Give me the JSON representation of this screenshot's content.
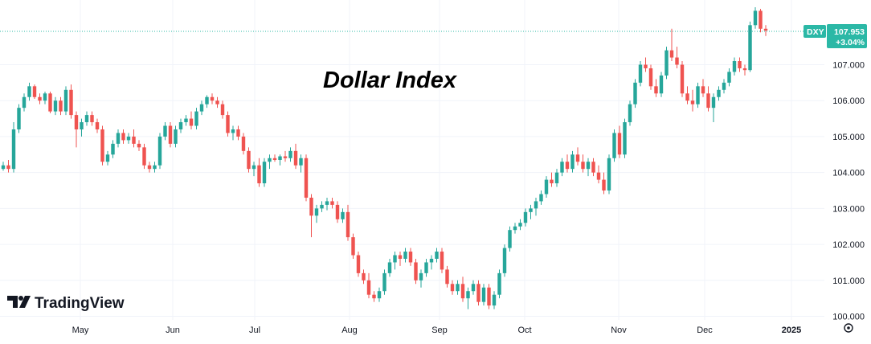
{
  "chart_data": {
    "type": "candlestick",
    "title": "Dollar Index",
    "symbol": "DXY",
    "last_price": "107.953",
    "change_pct": "+3.04%",
    "y_tick_labels": [
      "100.000",
      "101.000",
      "102.000",
      "103.000",
      "104.000",
      "105.000",
      "106.000",
      "107.000"
    ],
    "y_ticks": [
      100,
      101,
      102,
      103,
      104,
      105,
      106,
      107
    ],
    "ylim": [
      99.9,
      108.8
    ],
    "x_tick_labels": [
      "May",
      "Jun",
      "Jul",
      "Aug",
      "Sep",
      "Oct",
      "Nov",
      "Dec",
      "2025"
    ],
    "x_tick_bold": "2025",
    "grid": true,
    "up_color": "#26a69a",
    "down_color": "#ef5350",
    "accent_color": "#2bb8a6",
    "candles": [
      [
        104.1,
        104.3,
        104.05,
        104.2
      ],
      [
        104.2,
        104.35,
        104.0,
        104.1
      ],
      [
        104.1,
        105.4,
        104.0,
        105.2
      ],
      [
        105.2,
        105.9,
        105.1,
        105.8
      ],
      [
        105.8,
        106.2,
        105.7,
        106.1
      ],
      [
        106.1,
        106.5,
        106.0,
        106.4
      ],
      [
        106.4,
        106.45,
        106.05,
        106.1
      ],
      [
        106.1,
        106.2,
        105.9,
        106.0
      ],
      [
        106.0,
        106.25,
        105.9,
        106.2
      ],
      [
        106.2,
        106.25,
        105.65,
        105.7
      ],
      [
        105.7,
        106.1,
        105.6,
        106.0
      ],
      [
        106.0,
        106.1,
        105.6,
        105.7
      ],
      [
        105.7,
        106.4,
        105.6,
        106.3
      ],
      [
        106.3,
        106.45,
        105.5,
        105.6
      ],
      [
        105.6,
        105.7,
        104.7,
        105.2
      ],
      [
        105.2,
        105.5,
        105.0,
        105.4
      ],
      [
        105.4,
        105.7,
        105.3,
        105.6
      ],
      [
        105.6,
        105.7,
        105.3,
        105.4
      ],
      [
        105.4,
        105.5,
        105.1,
        105.2
      ],
      [
        105.2,
        105.3,
        104.2,
        104.3
      ],
      [
        104.3,
        104.6,
        104.2,
        104.5
      ],
      [
        104.5,
        104.9,
        104.4,
        104.8
      ],
      [
        104.8,
        105.2,
        104.7,
        105.1
      ],
      [
        105.1,
        105.2,
        104.8,
        104.9
      ],
      [
        104.9,
        105.1,
        104.8,
        105.0
      ],
      [
        105.0,
        105.2,
        104.7,
        104.8
      ],
      [
        104.8,
        104.9,
        104.6,
        104.7
      ],
      [
        104.7,
        104.8,
        104.1,
        104.2
      ],
      [
        104.2,
        104.3,
        104.0,
        104.1
      ],
      [
        104.1,
        104.3,
        104.0,
        104.2
      ],
      [
        104.2,
        105.1,
        104.1,
        105.0
      ],
      [
        105.0,
        105.4,
        104.9,
        105.3
      ],
      [
        105.3,
        105.4,
        104.7,
        104.8
      ],
      [
        104.8,
        105.3,
        104.7,
        105.2
      ],
      [
        105.2,
        105.5,
        105.1,
        105.4
      ],
      [
        105.4,
        105.6,
        105.3,
        105.5
      ],
      [
        105.5,
        105.7,
        105.2,
        105.3
      ],
      [
        105.3,
        105.8,
        105.2,
        105.7
      ],
      [
        105.7,
        106.0,
        105.6,
        105.9
      ],
      [
        105.9,
        106.15,
        105.8,
        106.1
      ],
      [
        106.1,
        106.2,
        105.9,
        106.0
      ],
      [
        106.0,
        106.1,
        105.8,
        105.9
      ],
      [
        105.9,
        106.0,
        105.5,
        105.6
      ],
      [
        105.6,
        105.7,
        105.0,
        105.1
      ],
      [
        105.1,
        105.3,
        104.9,
        105.2
      ],
      [
        105.2,
        105.3,
        104.9,
        105.0
      ],
      [
        105.0,
        105.1,
        104.5,
        104.6
      ],
      [
        104.6,
        104.7,
        104.0,
        104.1
      ],
      [
        104.1,
        104.3,
        103.9,
        104.2
      ],
      [
        104.2,
        104.4,
        103.6,
        103.7
      ],
      [
        103.7,
        104.4,
        103.6,
        104.3
      ],
      [
        104.3,
        104.5,
        104.1,
        104.4
      ],
      [
        104.4,
        104.5,
        104.3,
        104.35
      ],
      [
        104.35,
        104.5,
        104.2,
        104.45
      ],
      [
        104.45,
        104.6,
        104.3,
        104.4
      ],
      [
        104.4,
        104.7,
        104.3,
        104.6
      ],
      [
        104.6,
        104.8,
        104.1,
        104.2
      ],
      [
        104.2,
        104.5,
        104.0,
        104.4
      ],
      [
        104.4,
        104.5,
        103.2,
        103.3
      ],
      [
        103.3,
        103.4,
        102.2,
        102.8
      ],
      [
        102.8,
        103.1,
        102.6,
        103.0
      ],
      [
        103.0,
        103.2,
        102.9,
        103.1
      ],
      [
        103.1,
        103.3,
        102.95,
        103.2
      ],
      [
        103.2,
        103.3,
        103.0,
        103.1
      ],
      [
        103.1,
        103.2,
        102.6,
        102.7
      ],
      [
        102.7,
        103.0,
        102.6,
        102.9
      ],
      [
        102.9,
        103.1,
        102.1,
        102.2
      ],
      [
        102.2,
        102.3,
        101.6,
        101.7
      ],
      [
        101.7,
        101.8,
        101.1,
        101.2
      ],
      [
        101.2,
        101.3,
        100.9,
        101.0
      ],
      [
        101.0,
        101.2,
        100.5,
        100.6
      ],
      [
        100.6,
        100.7,
        100.4,
        100.5
      ],
      [
        100.5,
        100.8,
        100.4,
        100.7
      ],
      [
        100.7,
        101.3,
        100.6,
        101.2
      ],
      [
        101.2,
        101.6,
        101.1,
        101.5
      ],
      [
        101.5,
        101.8,
        101.3,
        101.7
      ],
      [
        101.7,
        101.8,
        101.4,
        101.6
      ],
      [
        101.6,
        101.9,
        101.5,
        101.8
      ],
      [
        101.8,
        101.9,
        101.4,
        101.5
      ],
      [
        101.5,
        101.6,
        100.9,
        101.0
      ],
      [
        101.0,
        101.3,
        100.8,
        101.2
      ],
      [
        101.2,
        101.6,
        101.1,
        101.5
      ],
      [
        101.5,
        101.7,
        101.3,
        101.6
      ],
      [
        101.6,
        101.9,
        101.5,
        101.8
      ],
      [
        101.8,
        101.9,
        101.2,
        101.3
      ],
      [
        101.3,
        101.4,
        100.8,
        100.9
      ],
      [
        100.9,
        101.0,
        100.6,
        100.7
      ],
      [
        100.7,
        101.0,
        100.6,
        100.9
      ],
      [
        100.9,
        101.1,
        100.4,
        100.5
      ],
      [
        100.5,
        100.8,
        100.2,
        100.7
      ],
      [
        100.7,
        101.0,
        100.6,
        100.9
      ],
      [
        100.9,
        101.0,
        100.3,
        100.4
      ],
      [
        100.4,
        100.9,
        100.3,
        100.8
      ],
      [
        100.8,
        100.9,
        100.2,
        100.3
      ],
      [
        100.3,
        100.7,
        100.2,
        100.6
      ],
      [
        100.6,
        101.3,
        100.5,
        101.2
      ],
      [
        101.2,
        102.0,
        101.1,
        101.9
      ],
      [
        101.9,
        102.5,
        101.8,
        102.4
      ],
      [
        102.4,
        102.6,
        102.3,
        102.5
      ],
      [
        102.5,
        102.7,
        102.4,
        102.6
      ],
      [
        102.6,
        103.0,
        102.5,
        102.9
      ],
      [
        102.9,
        103.1,
        102.7,
        103.0
      ],
      [
        103.0,
        103.3,
        102.8,
        103.2
      ],
      [
        103.2,
        103.5,
        103.1,
        103.4
      ],
      [
        103.4,
        103.9,
        103.3,
        103.8
      ],
      [
        103.8,
        104.0,
        103.6,
        103.7
      ],
      [
        103.7,
        104.1,
        103.6,
        104.0
      ],
      [
        104.0,
        104.4,
        103.9,
        104.3
      ],
      [
        104.3,
        104.5,
        104.0,
        104.1
      ],
      [
        104.1,
        104.6,
        104.0,
        104.5
      ],
      [
        104.5,
        104.7,
        104.2,
        104.3
      ],
      [
        104.3,
        104.5,
        104.0,
        104.1
      ],
      [
        104.1,
        104.4,
        103.9,
        104.3
      ],
      [
        104.3,
        104.4,
        103.9,
        104.0
      ],
      [
        104.0,
        104.2,
        103.7,
        103.8
      ],
      [
        103.8,
        104.0,
        103.4,
        103.5
      ],
      [
        103.5,
        104.5,
        103.4,
        104.4
      ],
      [
        104.4,
        105.2,
        104.3,
        105.1
      ],
      [
        105.1,
        105.3,
        104.4,
        104.5
      ],
      [
        104.5,
        105.5,
        104.4,
        105.4
      ],
      [
        105.4,
        106.0,
        105.3,
        105.9
      ],
      [
        105.9,
        106.6,
        105.8,
        106.5
      ],
      [
        106.5,
        107.1,
        106.4,
        107.0
      ],
      [
        107.0,
        107.2,
        106.8,
        106.9
      ],
      [
        106.9,
        107.0,
        106.3,
        106.4
      ],
      [
        106.4,
        106.6,
        106.1,
        106.2
      ],
      [
        106.2,
        106.8,
        106.1,
        106.7
      ],
      [
        106.7,
        107.5,
        106.6,
        107.4
      ],
      [
        107.4,
        108.0,
        107.1,
        107.2
      ],
      [
        107.2,
        107.5,
        106.9,
        107.0
      ],
      [
        107.0,
        107.1,
        106.1,
        106.2
      ],
      [
        106.2,
        106.4,
        105.9,
        106.0
      ],
      [
        106.0,
        106.3,
        105.7,
        105.9
      ],
      [
        105.9,
        106.5,
        105.8,
        106.4
      ],
      [
        106.4,
        106.6,
        106.1,
        106.2
      ],
      [
        106.2,
        106.4,
        105.7,
        105.8
      ],
      [
        105.8,
        106.2,
        105.4,
        106.1
      ],
      [
        106.1,
        106.4,
        106.0,
        106.3
      ],
      [
        106.3,
        106.6,
        106.2,
        106.5
      ],
      [
        106.5,
        106.9,
        106.4,
        106.8
      ],
      [
        106.8,
        107.2,
        106.7,
        107.1
      ],
      [
        107.1,
        107.2,
        106.8,
        106.9
      ],
      [
        106.9,
        107.0,
        106.7,
        106.85
      ],
      [
        106.85,
        108.2,
        106.8,
        108.1
      ],
      [
        108.1,
        108.6,
        108.0,
        108.5
      ],
      [
        108.5,
        108.55,
        107.9,
        108.0
      ],
      [
        108.0,
        108.1,
        107.8,
        107.95
      ]
    ]
  }
}
